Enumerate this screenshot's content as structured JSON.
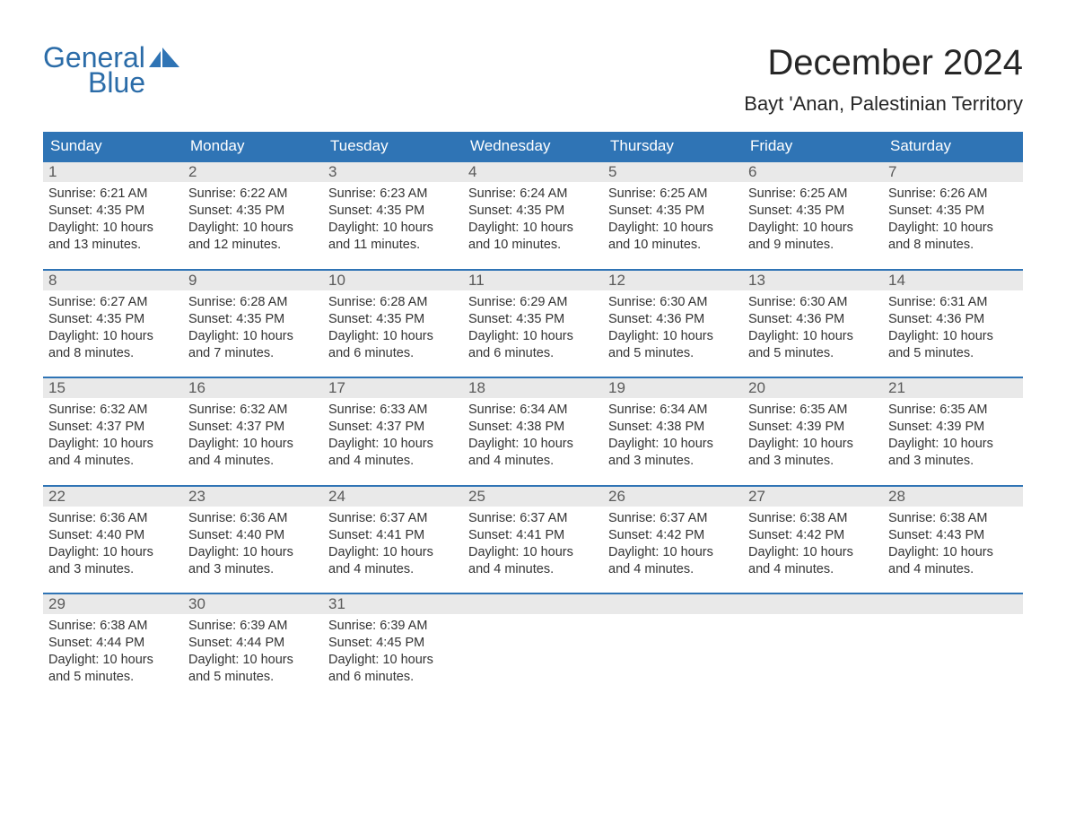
{
  "brand": {
    "word1": "General",
    "word2": "Blue",
    "logo_color": "#2f74b5"
  },
  "title": "December 2024",
  "subtitle": "Bayt 'Anan, Palestinian Territory",
  "colors": {
    "header_bg": "#2f74b5",
    "header_text": "#ffffff",
    "daynum_bg": "#e9e9e9",
    "daynum_text": "#5a5a5a",
    "body_text": "#333333",
    "week_border": "#2f74b5",
    "page_bg": "#ffffff"
  },
  "day_names": [
    "Sunday",
    "Monday",
    "Tuesday",
    "Wednesday",
    "Thursday",
    "Friday",
    "Saturday"
  ],
  "weeks": [
    [
      {
        "n": "1",
        "sunrise": "6:21 AM",
        "sunset": "4:35 PM",
        "daylight": "10 hours and 13 minutes."
      },
      {
        "n": "2",
        "sunrise": "6:22 AM",
        "sunset": "4:35 PM",
        "daylight": "10 hours and 12 minutes."
      },
      {
        "n": "3",
        "sunrise": "6:23 AM",
        "sunset": "4:35 PM",
        "daylight": "10 hours and 11 minutes."
      },
      {
        "n": "4",
        "sunrise": "6:24 AM",
        "sunset": "4:35 PM",
        "daylight": "10 hours and 10 minutes."
      },
      {
        "n": "5",
        "sunrise": "6:25 AM",
        "sunset": "4:35 PM",
        "daylight": "10 hours and 10 minutes."
      },
      {
        "n": "6",
        "sunrise": "6:25 AM",
        "sunset": "4:35 PM",
        "daylight": "10 hours and 9 minutes."
      },
      {
        "n": "7",
        "sunrise": "6:26 AM",
        "sunset": "4:35 PM",
        "daylight": "10 hours and 8 minutes."
      }
    ],
    [
      {
        "n": "8",
        "sunrise": "6:27 AM",
        "sunset": "4:35 PM",
        "daylight": "10 hours and 8 minutes."
      },
      {
        "n": "9",
        "sunrise": "6:28 AM",
        "sunset": "4:35 PM",
        "daylight": "10 hours and 7 minutes."
      },
      {
        "n": "10",
        "sunrise": "6:28 AM",
        "sunset": "4:35 PM",
        "daylight": "10 hours and 6 minutes."
      },
      {
        "n": "11",
        "sunrise": "6:29 AM",
        "sunset": "4:35 PM",
        "daylight": "10 hours and 6 minutes."
      },
      {
        "n": "12",
        "sunrise": "6:30 AM",
        "sunset": "4:36 PM",
        "daylight": "10 hours and 5 minutes."
      },
      {
        "n": "13",
        "sunrise": "6:30 AM",
        "sunset": "4:36 PM",
        "daylight": "10 hours and 5 minutes."
      },
      {
        "n": "14",
        "sunrise": "6:31 AM",
        "sunset": "4:36 PM",
        "daylight": "10 hours and 5 minutes."
      }
    ],
    [
      {
        "n": "15",
        "sunrise": "6:32 AM",
        "sunset": "4:37 PM",
        "daylight": "10 hours and 4 minutes."
      },
      {
        "n": "16",
        "sunrise": "6:32 AM",
        "sunset": "4:37 PM",
        "daylight": "10 hours and 4 minutes."
      },
      {
        "n": "17",
        "sunrise": "6:33 AM",
        "sunset": "4:37 PM",
        "daylight": "10 hours and 4 minutes."
      },
      {
        "n": "18",
        "sunrise": "6:34 AM",
        "sunset": "4:38 PM",
        "daylight": "10 hours and 4 minutes."
      },
      {
        "n": "19",
        "sunrise": "6:34 AM",
        "sunset": "4:38 PM",
        "daylight": "10 hours and 3 minutes."
      },
      {
        "n": "20",
        "sunrise": "6:35 AM",
        "sunset": "4:39 PM",
        "daylight": "10 hours and 3 minutes."
      },
      {
        "n": "21",
        "sunrise": "6:35 AM",
        "sunset": "4:39 PM",
        "daylight": "10 hours and 3 minutes."
      }
    ],
    [
      {
        "n": "22",
        "sunrise": "6:36 AM",
        "sunset": "4:40 PM",
        "daylight": "10 hours and 3 minutes."
      },
      {
        "n": "23",
        "sunrise": "6:36 AM",
        "sunset": "4:40 PM",
        "daylight": "10 hours and 3 minutes."
      },
      {
        "n": "24",
        "sunrise": "6:37 AM",
        "sunset": "4:41 PM",
        "daylight": "10 hours and 4 minutes."
      },
      {
        "n": "25",
        "sunrise": "6:37 AM",
        "sunset": "4:41 PM",
        "daylight": "10 hours and 4 minutes."
      },
      {
        "n": "26",
        "sunrise": "6:37 AM",
        "sunset": "4:42 PM",
        "daylight": "10 hours and 4 minutes."
      },
      {
        "n": "27",
        "sunrise": "6:38 AM",
        "sunset": "4:42 PM",
        "daylight": "10 hours and 4 minutes."
      },
      {
        "n": "28",
        "sunrise": "6:38 AM",
        "sunset": "4:43 PM",
        "daylight": "10 hours and 4 minutes."
      }
    ],
    [
      {
        "n": "29",
        "sunrise": "6:38 AM",
        "sunset": "4:44 PM",
        "daylight": "10 hours and 5 minutes."
      },
      {
        "n": "30",
        "sunrise": "6:39 AM",
        "sunset": "4:44 PM",
        "daylight": "10 hours and 5 minutes."
      },
      {
        "n": "31",
        "sunrise": "6:39 AM",
        "sunset": "4:45 PM",
        "daylight": "10 hours and 6 minutes."
      },
      null,
      null,
      null,
      null
    ]
  ],
  "labels": {
    "sunrise": "Sunrise:",
    "sunset": "Sunset:",
    "daylight": "Daylight:"
  }
}
